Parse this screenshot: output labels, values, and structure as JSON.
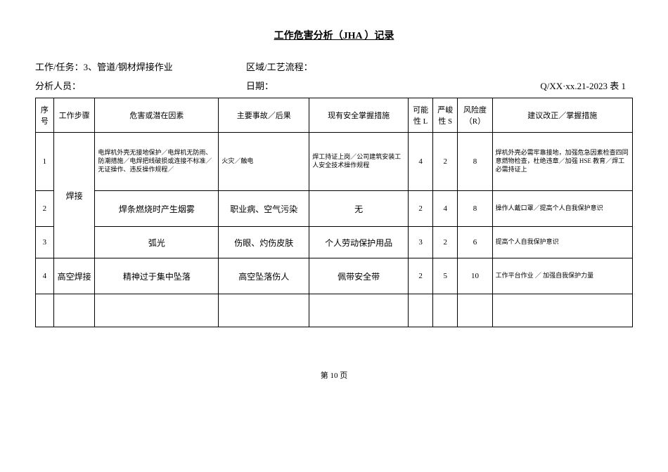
{
  "title": "工作危害分析（JHA ）记录",
  "meta": {
    "task_label": "工作/任务：",
    "task_value": "3、管道/钢材焊接作业",
    "area_label": "区域/工艺流程：",
    "area_value": "",
    "analyst_label": "分析人员：",
    "analyst_value": "",
    "date_label": "日期：",
    "date_value": "",
    "doc_ref": "Q/XX·xx.21-2023  表 1"
  },
  "headers": {
    "seq": "序号",
    "step": "工作步骤",
    "hazard": "危害或潜在因素",
    "accident": "主要事故／后果",
    "measure": "现有安全掌握措施",
    "likelihood": "可能性 L",
    "severity": "严峻性 S",
    "risk": "风险度（R）",
    "suggest": "建议改正／掌握措施"
  },
  "rows": [
    {
      "seq": "1",
      "step": "焊接",
      "hazard": "电焊机外壳无接地保护／电焊机无防雨、防潮措施／电焊把线破损或连接不标准／无证操作、违反操作规程／",
      "accident": "火灾／触电",
      "measure": "焊工持证上岗／公司建筑安装工人安全技术操作规程",
      "l": "4",
      "s": "2",
      "r": "8",
      "suggest": "焊机外壳必需牢靠接地，加强危急因素检查四同意燃物检查，杜绝违章／加强 HSE 教育／焊工必需持证上"
    },
    {
      "seq": "2",
      "hazard": "焊条燃烧时产生烟雾",
      "accident": "职业病、空气污染",
      "measure": "无",
      "l": "2",
      "s": "4",
      "r": "8",
      "suggest": "操作人戴口罩／提高个人自我保护意识"
    },
    {
      "seq": "3",
      "hazard": "弧光",
      "accident": "伤眼、灼伤皮肤",
      "measure": "个人劳动保护用品",
      "l": "3",
      "s": "2",
      "r": "6",
      "suggest": "提高个人自我保护意识"
    },
    {
      "seq": "4",
      "step": "高空焊接",
      "hazard": "精神过于集中坠落",
      "accident": "高空坠落伤人",
      "measure": "佩带安全带",
      "l": "2",
      "s": "5",
      "r": "10",
      "suggest": "工作平台作业 ／ 加强自我保护力量"
    }
  ],
  "footer": "第 10 页"
}
